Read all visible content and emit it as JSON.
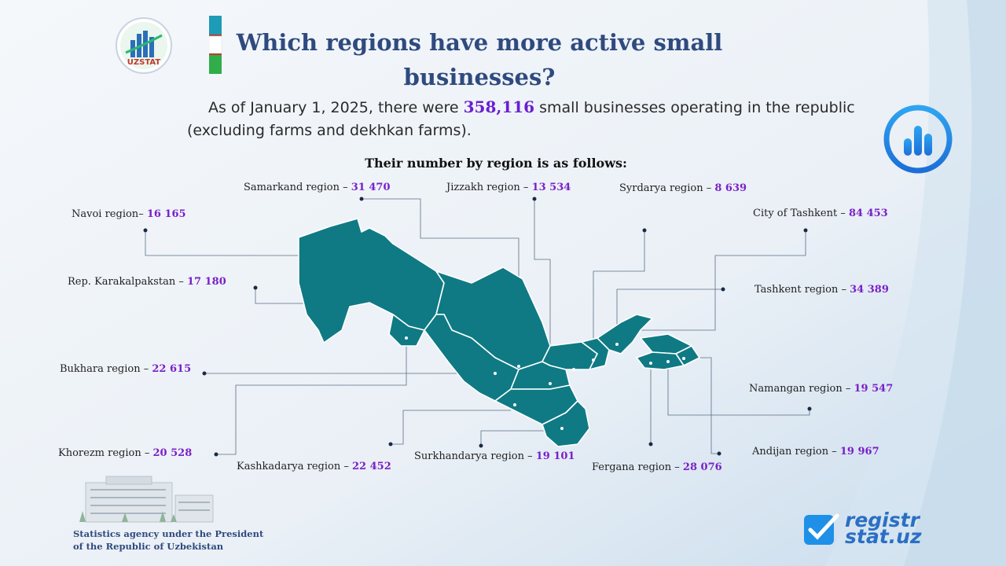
{
  "header": {
    "title": "Which regions have more active small businesses?",
    "logo_text": "UZSTAT"
  },
  "intro": {
    "line1_before": "As of January 1, 2025, there were ",
    "total": "358,116",
    "line1_after": " small businesses operating in the republic",
    "line2": "(excluding farms and dekhkan farms)."
  },
  "subheading": "Their number by region is as follows:",
  "regions": [
    {
      "name": "Samarkand region",
      "sep": " – ",
      "value": "31 470"
    },
    {
      "name": "Jizzakh region",
      "sep": " – ",
      "value": "13 534"
    },
    {
      "name": "Syrdarya region",
      "sep": " – ",
      "value": "8 639"
    },
    {
      "name": "Navoi region",
      "sep": "– ",
      "value": "16 165"
    },
    {
      "name": "City of Tashkent",
      "sep": " – ",
      "value": "84 453"
    },
    {
      "name": "Rep. Karakalpakstan",
      "sep": " – ",
      "value": "17 180"
    },
    {
      "name": "Tashkent region",
      "sep": " – ",
      "value": "34 389"
    },
    {
      "name": "Bukhara region",
      "sep": " – ",
      "value": "22 615"
    },
    {
      "name": "Namangan region",
      "sep": " – ",
      "value": "19 547"
    },
    {
      "name": "Khorezm region",
      "sep": " – ",
      "value": "20 528"
    },
    {
      "name": "Andijan region",
      "sep": " – ",
      "value": "19 967"
    },
    {
      "name": "Kashkadarya region",
      "sep": " – ",
      "value": "22 452"
    },
    {
      "name": "Surkhandarya region",
      "sep": " – ",
      "value": "19 101"
    },
    {
      "name": "Fergana region",
      "sep": " – ",
      "value": "28 076"
    }
  ],
  "footer": {
    "agency_line1": "Statistics agency under the President",
    "agency_line2": "of the Republic  of Uzbekistan",
    "brand_line1": "registr",
    "brand_line2": "stat.uz"
  },
  "colors": {
    "map_fill": "#0f7a84",
    "title": "#2f4a7e",
    "value": "#7a20c8",
    "chart_icon": "#1e90e8"
  },
  "icons": [
    "uzstat-logo-icon",
    "flag-strip-icon",
    "bar-chart-icon",
    "checkmark-icon",
    "building-icon"
  ]
}
